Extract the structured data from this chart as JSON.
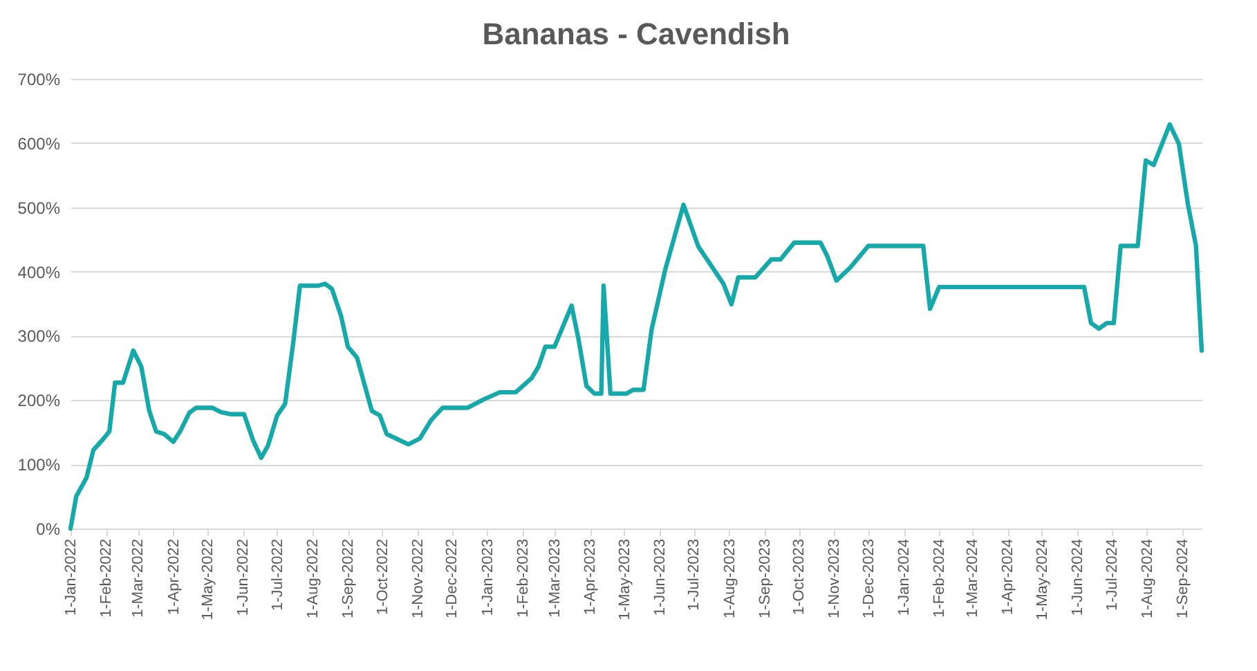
{
  "chart_data": {
    "type": "line",
    "title": "Bananas - Cavendish",
    "x": [
      "2022-01-01",
      "2022-01-06",
      "2022-01-15",
      "2022-01-21",
      "2022-01-30",
      "2022-02-04",
      "2022-02-09",
      "2022-02-16",
      "2022-02-25",
      "2022-03-04",
      "2022-03-11",
      "2022-03-17",
      "2022-03-24",
      "2022-04-01",
      "2022-04-07",
      "2022-04-15",
      "2022-04-21",
      "2022-05-05",
      "2022-05-13",
      "2022-05-21",
      "2022-06-02",
      "2022-06-10",
      "2022-06-17",
      "2022-06-23",
      "2022-07-01",
      "2022-07-08",
      "2022-07-15",
      "2022-07-21",
      "2022-08-06",
      "2022-08-12",
      "2022-08-18",
      "2022-08-26",
      "2022-09-01",
      "2022-09-09",
      "2022-09-22",
      "2022-09-29",
      "2022-10-05",
      "2022-10-24",
      "2022-11-03",
      "2022-11-13",
      "2022-11-23",
      "2022-12-15",
      "2022-12-29",
      "2023-01-12",
      "2023-01-26",
      "2023-02-09",
      "2023-02-15",
      "2023-02-21",
      "2023-03-01",
      "2023-03-16",
      "2023-03-22",
      "2023-03-29",
      "2023-04-05",
      "2023-04-11",
      "2023-04-13",
      "2023-04-19",
      "2023-05-03",
      "2023-05-09",
      "2023-05-18",
      "2023-05-25",
      "2023-06-06",
      "2023-06-22",
      "2023-07-05",
      "2023-07-27",
      "2023-08-03",
      "2023-08-09",
      "2023-08-24",
      "2023-09-07",
      "2023-09-15",
      "2023-09-27",
      "2023-10-20",
      "2023-10-26",
      "2023-11-03",
      "2023-11-15",
      "2023-12-01",
      "2024-01-18",
      "2024-01-24",
      "2024-02-01",
      "2024-06-07",
      "2024-06-13",
      "2024-06-20",
      "2024-06-27",
      "2024-07-03",
      "2024-07-09",
      "2024-07-24",
      "2024-07-31",
      "2024-08-07",
      "2024-08-21",
      "2024-08-29",
      "2024-09-06",
      "2024-09-13",
      "2024-09-18"
    ],
    "series": [
      {
        "color": "#17a9a9",
        "values": [
          0,
          50,
          79,
          122,
          140,
          151,
          227,
          227,
          277,
          252,
          183,
          151,
          147,
          135,
          151,
          180,
          188,
          188,
          181,
          178,
          178,
          137,
          110,
          129,
          176,
          194,
          288,
          378,
          378,
          381,
          373,
          331,
          283,
          266,
          183,
          176,
          147,
          131,
          140,
          169,
          188,
          188,
          201,
          212,
          212,
          234,
          252,
          283,
          283,
          347,
          295,
          222,
          210,
          210,
          378,
          210,
          210,
          216,
          216,
          309,
          403,
          504,
          439,
          381,
          349,
          391,
          391,
          419,
          419,
          445,
          445,
          424,
          386,
          406,
          440,
          440,
          342,
          376,
          376,
          320,
          311,
          320,
          320,
          440,
          440,
          573,
          566,
          629,
          599,
          504,
          440,
          277
        ]
      }
    ],
    "xlim": [
      "2022-01-01",
      "2024-09-18"
    ],
    "xticks": [
      {
        "value": "2022-01-01",
        "label": "1-Jan-2022"
      },
      {
        "value": "2022-02-01",
        "label": "1-Feb-2022"
      },
      {
        "value": "2022-03-01",
        "label": "1-Mar-2022"
      },
      {
        "value": "2022-04-01",
        "label": "1-Apr-2022"
      },
      {
        "value": "2022-05-01",
        "label": "1-May-2022"
      },
      {
        "value": "2022-06-01",
        "label": "1-Jun-2022"
      },
      {
        "value": "2022-07-01",
        "label": "1-Jul-2022"
      },
      {
        "value": "2022-08-01",
        "label": "1-Aug-2022"
      },
      {
        "value": "2022-09-01",
        "label": "1-Sep-2022"
      },
      {
        "value": "2022-10-01",
        "label": "1-Oct-2022"
      },
      {
        "value": "2022-11-01",
        "label": "1-Nov-2022"
      },
      {
        "value": "2022-12-01",
        "label": "1-Dec-2022"
      },
      {
        "value": "2023-01-01",
        "label": "1-Jan-2023"
      },
      {
        "value": "2023-02-01",
        "label": "1-Feb-2023"
      },
      {
        "value": "2023-03-01",
        "label": "1-Mar-2023"
      },
      {
        "value": "2023-04-01",
        "label": "1-Apr-2023"
      },
      {
        "value": "2023-05-01",
        "label": "1-May-2023"
      },
      {
        "value": "2023-06-01",
        "label": "1-Jun-2023"
      },
      {
        "value": "2023-07-01",
        "label": "1-Jul-2023"
      },
      {
        "value": "2023-08-01",
        "label": "1-Aug-2023"
      },
      {
        "value": "2023-09-01",
        "label": "1-Sep-2023"
      },
      {
        "value": "2023-10-01",
        "label": "1-Oct-2023"
      },
      {
        "value": "2023-11-01",
        "label": "1-Nov-2023"
      },
      {
        "value": "2023-12-01",
        "label": "1-Dec-2023"
      },
      {
        "value": "2024-01-01",
        "label": "1-Jan-2024"
      },
      {
        "value": "2024-02-01",
        "label": "1-Feb-2024"
      },
      {
        "value": "2024-03-01",
        "label": "1-Mar-2024"
      },
      {
        "value": "2024-04-01",
        "label": "1-Apr-2024"
      },
      {
        "value": "2024-05-01",
        "label": "1-May-2024"
      },
      {
        "value": "2024-06-01",
        "label": "1-Jun-2024"
      },
      {
        "value": "2024-07-01",
        "label": "1-Jul-2024"
      },
      {
        "value": "2024-08-01",
        "label": "1-Aug-2024"
      },
      {
        "value": "2024-09-01",
        "label": "1-Sep-2024"
      }
    ],
    "ylim": [
      0,
      700
    ],
    "yticks": [
      {
        "value": 0,
        "label": "0%"
      },
      {
        "value": 100,
        "label": "100%"
      },
      {
        "value": 200,
        "label": "200%"
      },
      {
        "value": 300,
        "label": "300%"
      },
      {
        "value": 400,
        "label": "400%"
      },
      {
        "value": 500,
        "label": "500%"
      },
      {
        "value": 600,
        "label": "600%"
      },
      {
        "value": 700,
        "label": "700%"
      }
    ],
    "grid": "y",
    "marker": "none",
    "line_style": "solid"
  }
}
